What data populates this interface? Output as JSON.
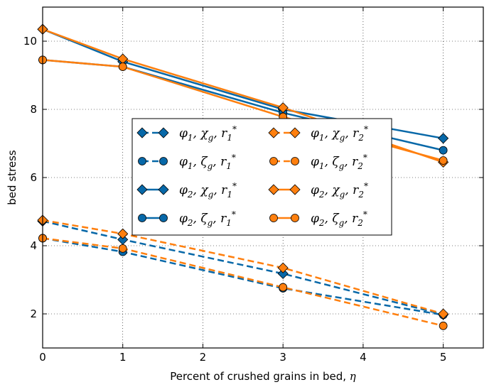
{
  "chart_data": {
    "type": "line",
    "xlabel_text": "Percent of crushed grains in bed, ",
    "xlabel_symbol": "η",
    "ylabel": "bed stress",
    "xlim": [
      0,
      5.5
    ],
    "ylim": [
      1,
      11
    ],
    "xticks": [
      0,
      1,
      2,
      3,
      4,
      5
    ],
    "yticks": [
      2,
      4,
      6,
      8,
      10
    ],
    "grid": true,
    "legend_position": "center",
    "x": [
      0,
      1,
      3,
      5
    ],
    "colors": {
      "r1": "#0768a8",
      "r2": "#ff7f0e"
    },
    "series": [
      {
        "label": {
          "a": "φ",
          "as": "1",
          "b": "χ",
          "bs": "g",
          "c": "r",
          "cs": "1",
          "sup": "*"
        },
        "color": "#0768a8",
        "dash": true,
        "marker": "diamond",
        "values": [
          4.72,
          4.18,
          3.18,
          1.98
        ]
      },
      {
        "label": {
          "a": "φ",
          "as": "1",
          "b": "ζ",
          "bs": "g",
          "c": "r",
          "cs": "1",
          "sup": "*"
        },
        "color": "#0768a8",
        "dash": true,
        "marker": "circle",
        "values": [
          4.22,
          3.82,
          2.75,
          1.97
        ]
      },
      {
        "label": {
          "a": "φ",
          "as": "2",
          "b": "χ",
          "bs": "g",
          "c": "r",
          "cs": "1",
          "sup": "*"
        },
        "color": "#0768a8",
        "dash": false,
        "marker": "diamond",
        "values": [
          10.35,
          9.4,
          8.0,
          7.15
        ]
      },
      {
        "label": {
          "a": "φ",
          "as": "2",
          "b": "ζ",
          "bs": "g",
          "c": "r",
          "cs": "1",
          "sup": "*"
        },
        "color": "#0768a8",
        "dash": false,
        "marker": "circle",
        "values": [
          9.45,
          9.25,
          7.9,
          6.8
        ]
      },
      {
        "label": {
          "a": "φ",
          "as": "1",
          "b": "χ",
          "bs": "g",
          "c": "r",
          "cs": "2",
          "sup": "*"
        },
        "color": "#ff7f0e",
        "dash": true,
        "marker": "diamond",
        "values": [
          4.75,
          4.35,
          3.35,
          2.0
        ]
      },
      {
        "label": {
          "a": "φ",
          "as": "1",
          "b": "ζ",
          "bs": "g",
          "c": "r",
          "cs": "2",
          "sup": "*"
        },
        "color": "#ff7f0e",
        "dash": true,
        "marker": "circle",
        "values": [
          4.22,
          3.92,
          2.78,
          1.65
        ]
      },
      {
        "label": {
          "a": "φ",
          "as": "2",
          "b": "χ",
          "bs": "g",
          "c": "r",
          "cs": "2",
          "sup": "*"
        },
        "color": "#ff7f0e",
        "dash": false,
        "marker": "diamond",
        "values": [
          10.35,
          9.48,
          8.05,
          6.45
        ]
      },
      {
        "label": {
          "a": "φ",
          "as": "2",
          "b": "ζ",
          "bs": "g",
          "c": "r",
          "cs": "2",
          "sup": "*"
        },
        "color": "#ff7f0e",
        "dash": false,
        "marker": "circle",
        "values": [
          9.45,
          9.25,
          7.78,
          6.5
        ]
      }
    ]
  }
}
